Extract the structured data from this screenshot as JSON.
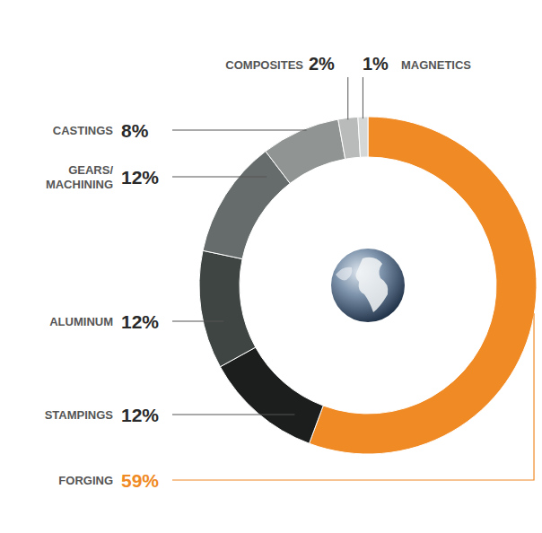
{
  "chart_data": {
    "type": "pie",
    "categories": [
      "FORGING",
      "STAMPINGS",
      "ALUMINUM",
      "GEARS/\nMACHINING",
      "CASTINGS",
      "COMPOSITES",
      "MAGNETICS"
    ],
    "values": [
      59,
      12,
      12,
      12,
      8,
      2,
      1
    ],
    "value_labels": [
      "59%",
      "12%",
      "12%",
      "12%",
      "8%",
      "2%",
      "1%"
    ],
    "colors": [
      "#f08a24",
      "#1b1e1c",
      "#3e4543",
      "#666c6b",
      "#909492",
      "#b9bbba",
      "#d5d6d6"
    ],
    "data_labels": true
  }
}
